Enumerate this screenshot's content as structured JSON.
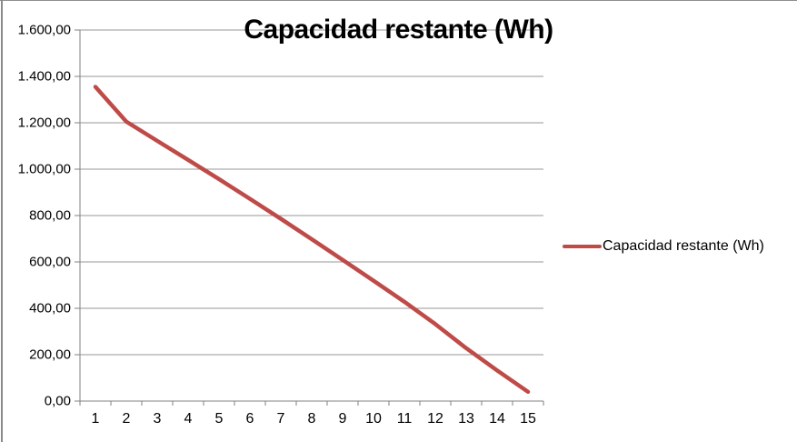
{
  "window": {
    "edge_color": "#8a8a8a"
  },
  "chart_data": {
    "type": "line",
    "title": "Capacidad restante (Wh)",
    "xlabel": "",
    "ylabel": "",
    "categories": [
      "1",
      "2",
      "3",
      "4",
      "5",
      "6",
      "7",
      "8",
      "9",
      "10",
      "11",
      "12",
      "13",
      "14",
      "15"
    ],
    "series": [
      {
        "name": "Capacidad restante (Wh)",
        "color": "#BE4B48",
        "values": [
          1355,
          1205,
          1122,
          1040,
          957,
          872,
          786,
          698,
          609,
          519,
          428,
          332,
          228,
          132,
          40
        ]
      }
    ],
    "y_axis": {
      "min": 0,
      "max": 1600,
      "step": 200,
      "tick_labels": [
        "0,00",
        "200,00",
        "400,00",
        "600,00",
        "800,00",
        "1.000,00",
        "1.200,00",
        "1.400,00",
        "1.600,00"
      ]
    },
    "grid": true,
    "legend": {
      "label": "Capacidad restante (Wh)",
      "position": "right"
    },
    "colors": {
      "gridline": "#979797",
      "axis": "#808080",
      "text": "#000000"
    }
  }
}
